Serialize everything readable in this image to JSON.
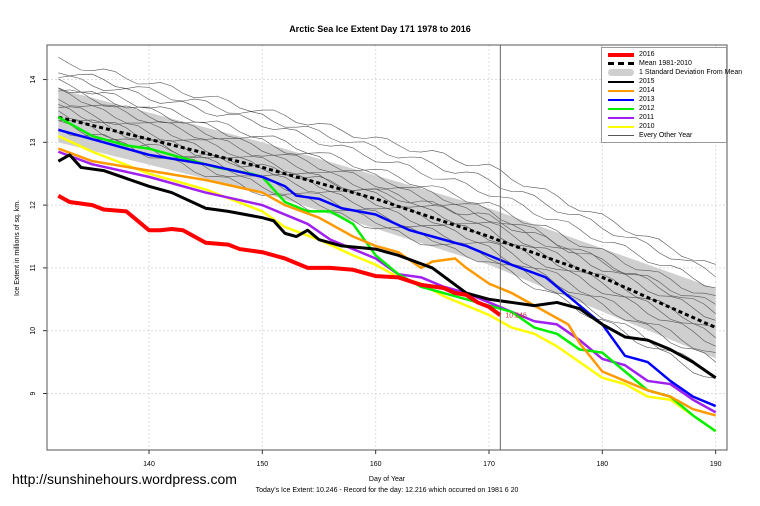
{
  "chart_data": {
    "type": "line",
    "title": "Arctic Sea Ice Extent Day 171 1978 to 2016",
    "xlabel": "Day of Year",
    "ylabel": "Ice Extent in millions of sq. km.",
    "xlim": [
      131,
      191
    ],
    "ylim": [
      8.1,
      14.55
    ],
    "xticks": [
      140,
      150,
      160,
      170,
      180,
      190
    ],
    "yticks": [
      9,
      10,
      11,
      12,
      13,
      14
    ],
    "grid": true,
    "legend_position": "top-right",
    "current_day_marker": 171,
    "current_value_label": "10.246",
    "note": "Today's Ice Extent: 10.246  - Record for the day: 12.216 which occurred on 1981 6 20",
    "mean": {
      "name": "Mean 1981-2010",
      "x": [
        132,
        140,
        150,
        160,
        170,
        171,
        180,
        190
      ],
      "y": [
        13.4,
        13.05,
        12.6,
        12.1,
        11.5,
        11.43,
        10.85,
        10.05
      ]
    },
    "std_band": {
      "name": "1 Standard Deviation From Mean",
      "x": [
        132,
        150,
        170,
        190
      ],
      "lower": [
        13.0,
        12.2,
        11.05,
        9.56
      ],
      "upper": [
        13.85,
        13.0,
        11.95,
        10.67
      ]
    },
    "series": [
      {
        "name": "2016",
        "color": "#ff0000",
        "width": 4,
        "x": [
          132,
          133,
          135,
          136,
          138,
          139,
          140,
          141,
          142,
          143,
          144,
          145,
          147,
          148,
          150,
          152,
          154,
          156,
          158,
          160,
          162,
          164,
          166,
          167,
          168,
          169,
          170,
          171
        ],
        "y": [
          12.15,
          12.05,
          12.0,
          11.93,
          11.9,
          11.75,
          11.6,
          11.6,
          11.62,
          11.6,
          11.5,
          11.4,
          11.37,
          11.3,
          11.25,
          11.15,
          11.0,
          11.0,
          10.97,
          10.87,
          10.85,
          10.73,
          10.68,
          10.6,
          10.57,
          10.45,
          10.38,
          10.246
        ]
      },
      {
        "name": "2015",
        "color": "#000000",
        "width": 3,
        "x": [
          132,
          133,
          134,
          136,
          140,
          142,
          145,
          147,
          150,
          151,
          152,
          153,
          154,
          155,
          157,
          160,
          162,
          165,
          168,
          170,
          172,
          174,
          176,
          178,
          180,
          182,
          184,
          186,
          188,
          190
        ],
        "y": [
          12.7,
          12.8,
          12.6,
          12.55,
          12.3,
          12.2,
          11.95,
          11.9,
          11.8,
          11.75,
          11.55,
          11.5,
          11.6,
          11.45,
          11.35,
          11.3,
          11.2,
          11.0,
          10.6,
          10.5,
          10.45,
          10.4,
          10.45,
          10.35,
          10.1,
          9.9,
          9.85,
          9.7,
          9.5,
          9.25
        ]
      },
      {
        "name": "2014",
        "color": "#ff9900",
        "width": 2.5,
        "x": [
          132,
          135,
          140,
          145,
          150,
          152,
          155,
          158,
          160,
          162,
          164,
          165,
          167,
          168,
          170,
          172,
          175,
          177,
          178,
          180,
          182,
          184,
          186,
          188,
          190
        ],
        "y": [
          12.9,
          12.7,
          12.55,
          12.4,
          12.2,
          12.0,
          11.8,
          11.5,
          11.35,
          11.25,
          11.0,
          11.1,
          11.15,
          11.0,
          10.75,
          10.6,
          10.3,
          10.1,
          9.8,
          9.35,
          9.2,
          9.05,
          8.95,
          8.75,
          8.65
        ]
      },
      {
        "name": "2013",
        "color": "#0000ff",
        "width": 2.5,
        "x": [
          132,
          135,
          140,
          145,
          150,
          152,
          153,
          155,
          157,
          160,
          163,
          165,
          168,
          170,
          172,
          175,
          178,
          180,
          182,
          184,
          186,
          188,
          190
        ],
        "y": [
          13.2,
          13.05,
          12.8,
          12.65,
          12.45,
          12.3,
          12.15,
          12.1,
          11.95,
          11.85,
          11.6,
          11.5,
          11.35,
          11.2,
          11.05,
          10.85,
          10.4,
          10.1,
          9.6,
          9.5,
          9.2,
          8.95,
          8.8
        ]
      },
      {
        "name": "2012",
        "color": "#00ee00",
        "width": 2.5,
        "x": [
          132,
          135,
          138,
          140,
          143,
          146,
          149,
          150,
          152,
          154,
          156,
          158,
          160,
          162,
          164,
          166,
          168,
          170,
          172,
          174,
          176,
          178,
          180,
          182,
          184,
          186,
          188,
          190
        ],
        "y": [
          13.4,
          13.1,
          12.95,
          12.9,
          12.75,
          12.6,
          12.5,
          12.45,
          12.05,
          11.9,
          11.9,
          11.7,
          11.2,
          10.9,
          10.7,
          10.6,
          10.5,
          10.4,
          10.3,
          10.05,
          9.95,
          9.7,
          9.65,
          9.35,
          9.05,
          8.95,
          8.65,
          8.4
        ]
      },
      {
        "name": "2011",
        "color": "#a020f0",
        "width": 2.5,
        "x": [
          132,
          135,
          140,
          145,
          150,
          152,
          154,
          156,
          158,
          160,
          162,
          164,
          166,
          168,
          170,
          172,
          174,
          176,
          178,
          180,
          182,
          184,
          186,
          188,
          190
        ],
        "y": [
          12.85,
          12.65,
          12.45,
          12.2,
          12.0,
          11.85,
          11.7,
          11.45,
          11.3,
          11.15,
          10.9,
          10.85,
          10.7,
          10.6,
          10.45,
          10.3,
          10.15,
          10.1,
          9.85,
          9.55,
          9.45,
          9.2,
          9.15,
          8.9,
          8.7
        ]
      },
      {
        "name": "2010",
        "color": "#ffff00",
        "width": 2.5,
        "x": [
          132,
          135,
          140,
          145,
          150,
          152,
          155,
          158,
          160,
          162,
          164,
          166,
          168,
          170,
          172,
          174,
          176,
          178,
          180,
          182,
          184,
          186,
          188,
          190
        ],
        "y": [
          13.1,
          12.85,
          12.5,
          12.25,
          11.9,
          11.65,
          11.45,
          11.2,
          11.05,
          10.85,
          10.75,
          10.55,
          10.4,
          10.25,
          10.05,
          9.95,
          9.75,
          9.5,
          9.25,
          9.15,
          8.95,
          8.9,
          8.65,
          8.4
        ]
      }
    ],
    "other_years": {
      "name": "Every Other Year",
      "color": "#555555",
      "x": [
        132,
        150,
        170,
        190
      ],
      "lines": [
        [
          14.3,
          13.5,
          12.6,
          11.0
        ],
        [
          14.15,
          13.4,
          12.4,
          10.9
        ],
        [
          14.05,
          13.3,
          12.2,
          10.7
        ],
        [
          13.95,
          13.1,
          12.0,
          10.5
        ],
        [
          13.9,
          13.0,
          11.9,
          10.3
        ],
        [
          13.85,
          12.9,
          11.8,
          10.2
        ],
        [
          13.8,
          12.8,
          11.7,
          10.0
        ],
        [
          13.7,
          12.7,
          11.6,
          9.9
        ],
        [
          13.6,
          12.6,
          11.5,
          9.8
        ],
        [
          13.55,
          12.5,
          11.4,
          9.6
        ],
        [
          13.5,
          12.4,
          11.3,
          9.5
        ],
        [
          13.4,
          12.3,
          11.2,
          9.3
        ],
        [
          13.3,
          12.2,
          11.1,
          9.2
        ],
        [
          13.2,
          12.6,
          11.8,
          10.4
        ]
      ]
    }
  },
  "legend": [
    "2016",
    "Mean 1981-2010",
    "1 Standard Deviation From Mean",
    "2015",
    "2014",
    "2013",
    "2012",
    "2011",
    "2010",
    "Every Other Year"
  ],
  "watermark": "http://sunshinehours.wordpress.com"
}
